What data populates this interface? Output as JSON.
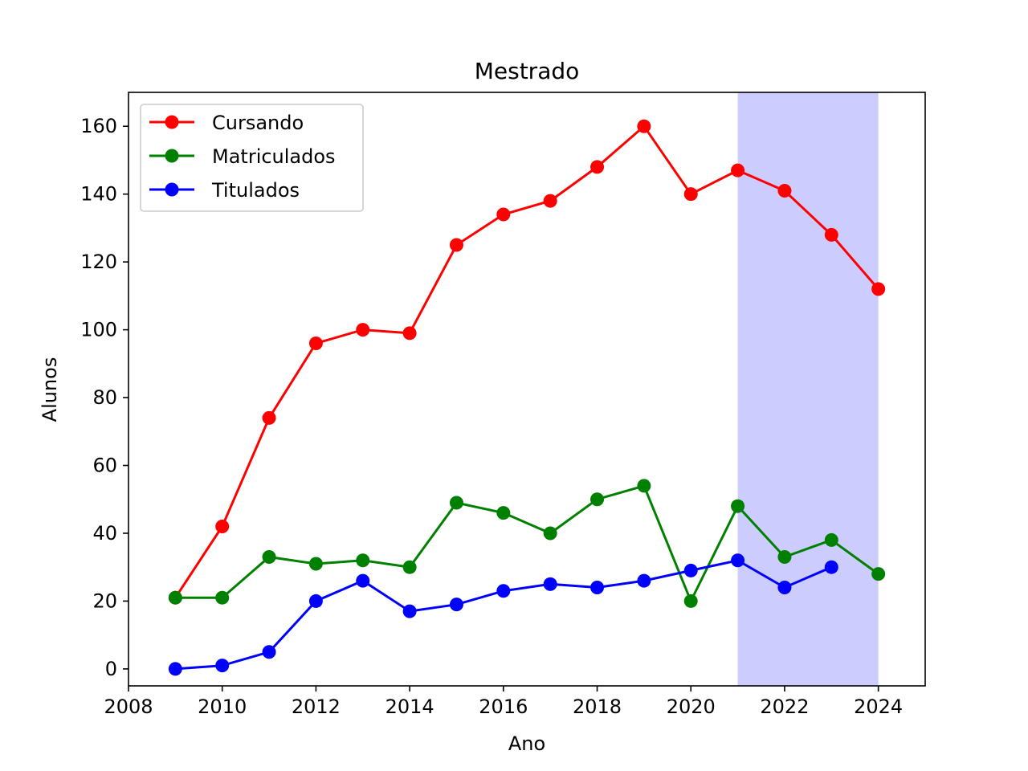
{
  "chart_data": {
    "type": "line",
    "title": "Mestrado",
    "xlabel": "Ano",
    "ylabel": "Alunos",
    "xlim": [
      2008,
      2025
    ],
    "ylim": [
      -5,
      170
    ],
    "xticks": [
      2008,
      2010,
      2012,
      2014,
      2016,
      2018,
      2020,
      2022,
      2024
    ],
    "yticks": [
      0,
      20,
      40,
      60,
      80,
      100,
      120,
      140,
      160
    ],
    "grid": false,
    "legend_position": "top-left",
    "shaded_span": {
      "x_start": 2021,
      "x_end": 2024,
      "color": "#ccccff"
    },
    "series": [
      {
        "name": "Cursando",
        "color": "#ff0000",
        "x": [
          2009,
          2010,
          2011,
          2012,
          2013,
          2014,
          2015,
          2016,
          2017,
          2018,
          2019,
          2020,
          2021,
          2022,
          2023,
          2024
        ],
        "values": [
          21,
          42,
          74,
          96,
          100,
          99,
          125,
          134,
          138,
          148,
          160,
          140,
          147,
          141,
          128,
          112
        ]
      },
      {
        "name": "Matriculados",
        "color": "#008000",
        "x": [
          2009,
          2010,
          2011,
          2012,
          2013,
          2014,
          2015,
          2016,
          2017,
          2018,
          2019,
          2020,
          2021,
          2022,
          2023,
          2024
        ],
        "values": [
          21,
          21,
          33,
          31,
          32,
          30,
          49,
          46,
          40,
          50,
          54,
          20,
          48,
          33,
          38,
          28
        ]
      },
      {
        "name": "Titulados",
        "color": "#0000ff",
        "x": [
          2009,
          2010,
          2011,
          2012,
          2013,
          2014,
          2015,
          2016,
          2017,
          2018,
          2019,
          2020,
          2021,
          2022,
          2023
        ],
        "values": [
          0,
          1,
          5,
          20,
          26,
          17,
          19,
          23,
          25,
          24,
          26,
          29,
          32,
          24,
          30
        ]
      }
    ]
  }
}
